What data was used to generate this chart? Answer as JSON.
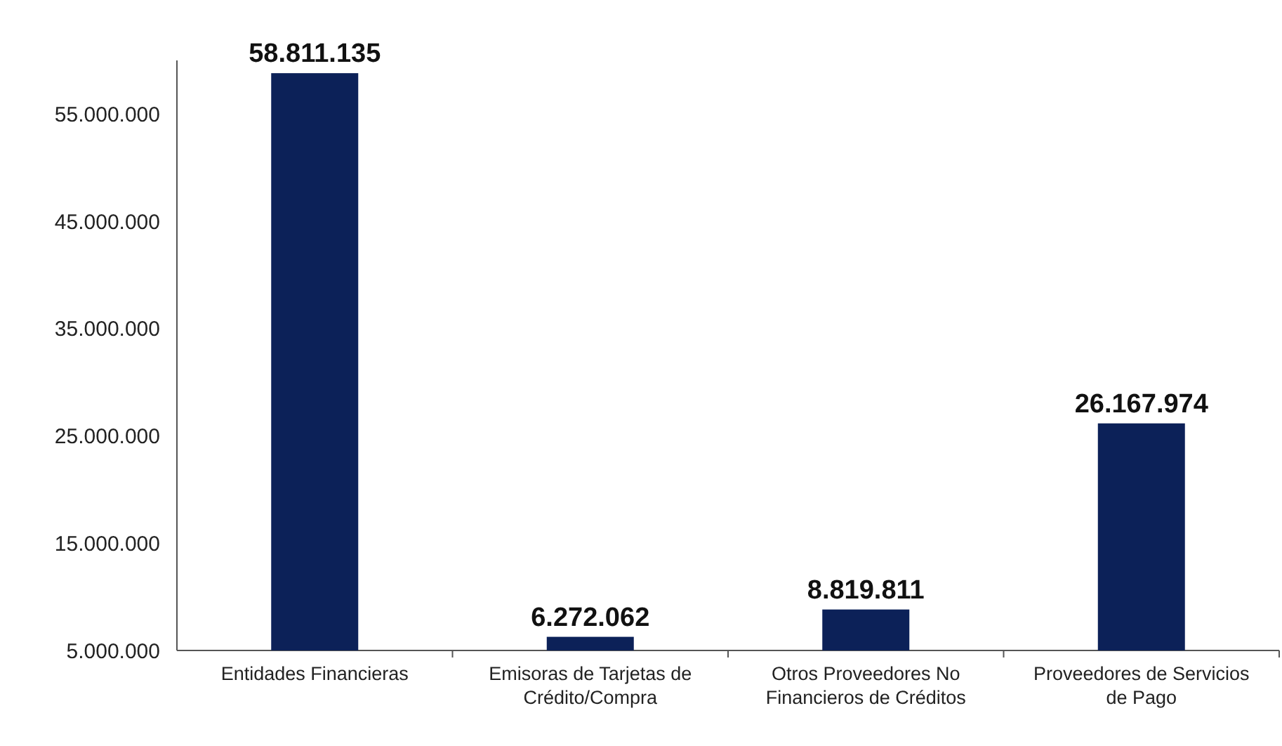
{
  "chart_data": {
    "type": "bar",
    "categories": [
      "Entidades Financieras",
      "Emisoras de Tarjetas de Crédito/Compra",
      "Otros Proveedores No Financieros de Créditos",
      "Proveedores de Servicios de Pago"
    ],
    "values": [
      58811135,
      6272062,
      8819811,
      26167974
    ],
    "value_labels": [
      "58.811.135",
      "6.272.062",
      "8.819.811",
      "26.167.974"
    ],
    "color": "#0c2158",
    "ylim": [
      5000000,
      60000000
    ],
    "yticks": [
      {
        "value": 5000000,
        "label": "5.000.000"
      },
      {
        "value": 15000000,
        "label": "15.000.000"
      },
      {
        "value": 25000000,
        "label": "25.000.000"
      },
      {
        "value": 35000000,
        "label": "35.000.000"
      },
      {
        "value": 45000000,
        "label": "45.000.000"
      },
      {
        "value": 55000000,
        "label": "55.000.000"
      }
    ],
    "grid": false
  }
}
